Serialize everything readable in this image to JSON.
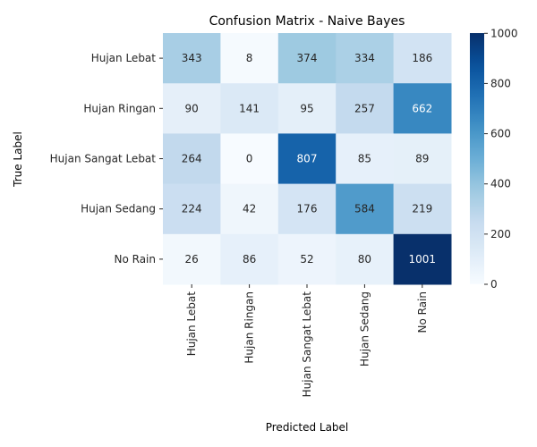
{
  "chart_data": {
    "type": "heatmap",
    "title": "Confusion Matrix - Naive Bayes",
    "xlabel": "Predicted Label",
    "ylabel": "True Label",
    "x_categories": [
      "Hujan Lebat",
      "Hujan Ringan",
      "Hujan Sangat Lebat",
      "Hujan Sedang",
      "No Rain"
    ],
    "y_categories": [
      "Hujan Lebat",
      "Hujan Ringan",
      "Hujan Sangat Lebat",
      "Hujan Sedang",
      "No Rain"
    ],
    "values": [
      [
        343,
        8,
        374,
        334,
        186
      ],
      [
        90,
        141,
        95,
        257,
        662
      ],
      [
        264,
        0,
        807,
        85,
        89
      ],
      [
        224,
        42,
        176,
        584,
        219
      ],
      [
        26,
        86,
        52,
        80,
        1001
      ]
    ],
    "colormap": "Blues",
    "vmin": 0,
    "vmax": 1001,
    "colorbar_ticks": [
      0,
      200,
      400,
      600,
      800,
      1000
    ],
    "colors": {
      "low": "#f7fbff",
      "high": "#08306b",
      "text_dark": "#262626",
      "text_light": "#ffffff"
    }
  }
}
